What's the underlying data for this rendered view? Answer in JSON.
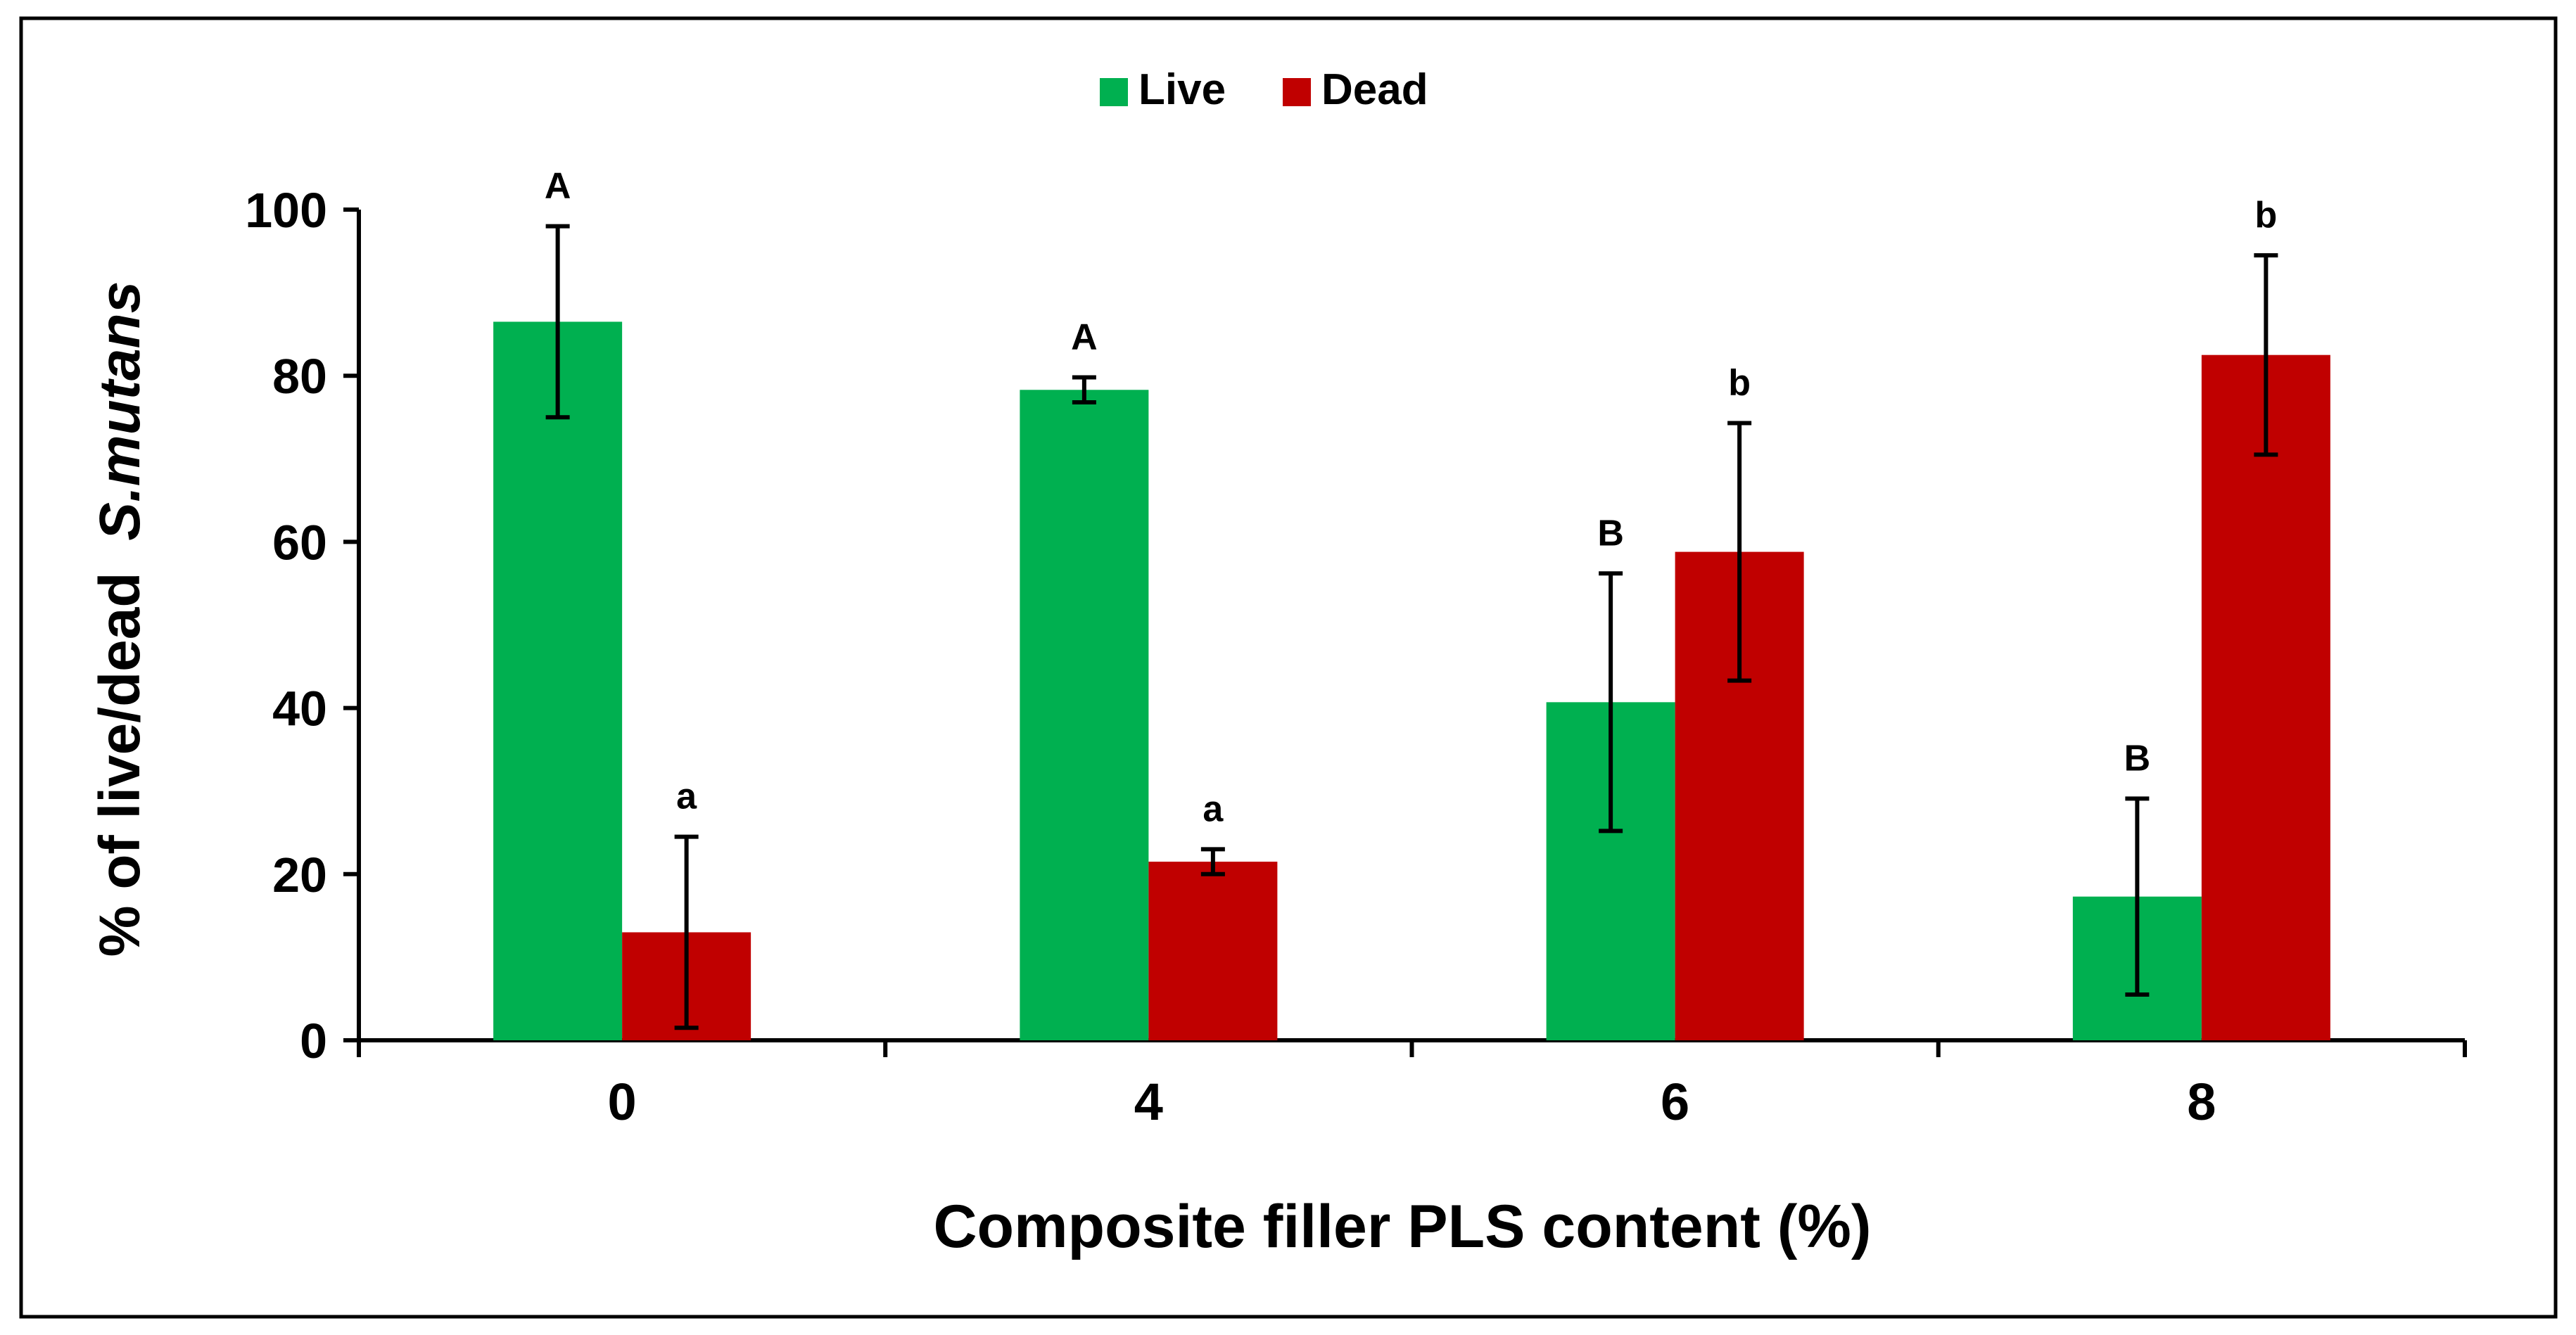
{
  "chart_data": {
    "type": "bar",
    "title": "",
    "xlabel": "Composite filler PLS content (%)",
    "ylabel": "% of live/dead",
    "ylabel_species": "S.mutans",
    "categories": [
      "0",
      "4",
      "6",
      "8"
    ],
    "ylim": [
      0,
      100
    ],
    "yticks": [
      0,
      20,
      40,
      60,
      80,
      100
    ],
    "grid": false,
    "legend_position": "top-center",
    "series": [
      {
        "name": "Live",
        "color": "#00b050",
        "values": [
          86.5,
          78.3,
          40.7,
          17.3
        ],
        "errors": [
          11.5,
          1.5,
          15.5,
          11.8
        ],
        "labels": [
          "A",
          "A",
          "B",
          "B"
        ]
      },
      {
        "name": "Dead",
        "color": "#c00000",
        "values": [
          13.0,
          21.5,
          58.8,
          82.5
        ],
        "errors": [
          11.5,
          1.5,
          15.5,
          12.0
        ],
        "labels": [
          "a",
          "a",
          "b",
          "b"
        ]
      }
    ]
  }
}
